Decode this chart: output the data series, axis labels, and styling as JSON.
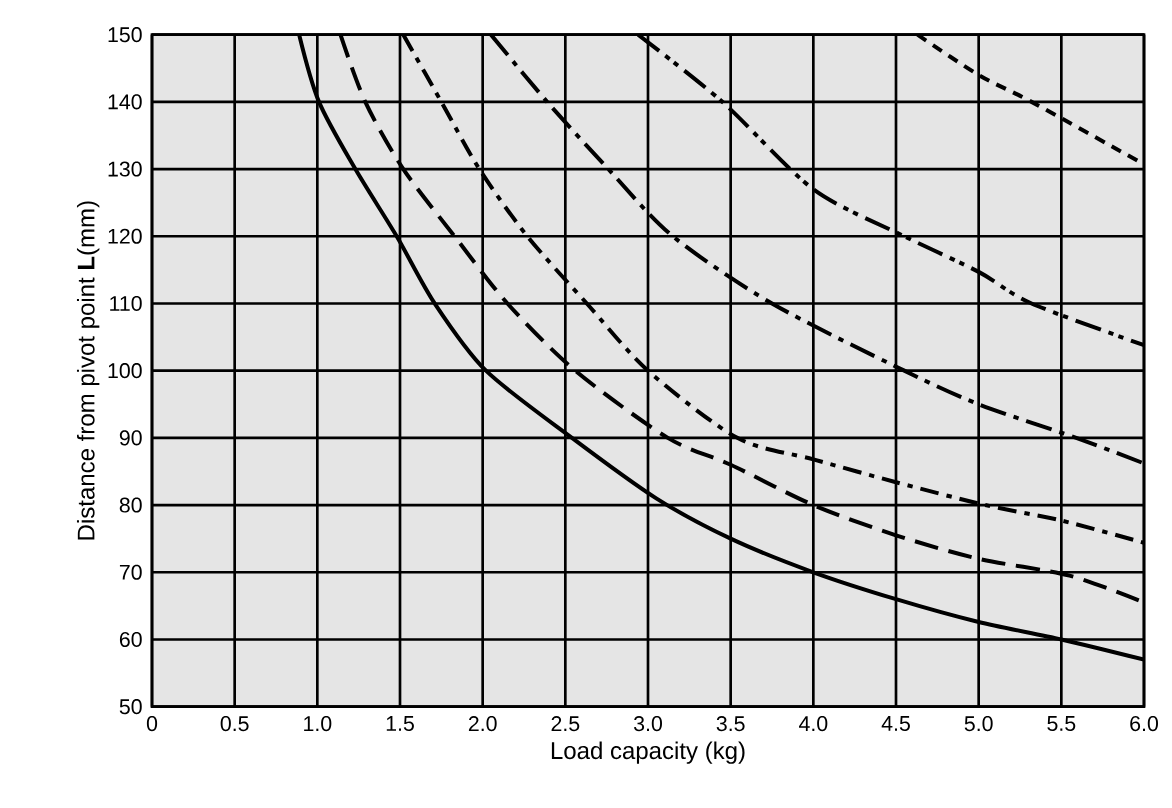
{
  "chart_data": {
    "type": "line",
    "xlabel": "Load capacity (kg)",
    "ylabel": "Distance from pivot point **L**(mm)",
    "xlim": [
      0,
      6
    ],
    "ylim": [
      50,
      150
    ],
    "xticks": [
      0,
      0.5,
      {
        "value": 1,
        "label": "1.0"
      },
      1.5,
      {
        "value": 2,
        "label": "2.0"
      },
      2.5,
      {
        "value": 3,
        "label": "3.0"
      },
      3.5,
      {
        "value": 4,
        "label": "4.0"
      },
      4.5,
      {
        "value": 5,
        "label": "5.0"
      },
      5.5,
      {
        "value": 6,
        "label": "6.0"
      }
    ],
    "yticks": [
      50,
      60,
      70,
      80,
      90,
      100,
      110,
      120,
      130,
      140,
      150
    ],
    "grid": true,
    "marker": "none",
    "series": [
      {
        "color": "#000000",
        "line_style": "solid",
        "x": [
          0.89,
          1.01,
          1.23,
          1.48,
          1.71,
          2.02,
          2.54,
          3.05,
          3.5,
          4.0,
          4.5,
          5.0,
          5.5,
          6.0
        ],
        "values": [
          150,
          140,
          130,
          120,
          110,
          100,
          90,
          81,
          75,
          70,
          66,
          62.6,
          60,
          57
        ]
      },
      {
        "color": "#000000",
        "line_style": "dashed",
        "x": [
          1.14,
          1.29,
          1.52,
          1.83,
          2.15,
          2.56,
          3.12,
          3.5,
          4.0,
          4.5,
          5.0,
          5.55,
          6.0
        ],
        "values": [
          150,
          140,
          130,
          120,
          110,
          100,
          90,
          86,
          80,
          75.5,
          72,
          69.5,
          65.5
        ]
      },
      {
        "color": "#000000",
        "line_style": "dashdot",
        "x": [
          1.52,
          1.75,
          1.98,
          2.27,
          2.63,
          3.0,
          3.54,
          4.0,
          4.5,
          5.04,
          5.5,
          6.0
        ],
        "values": [
          150,
          140,
          130,
          120,
          110,
          100,
          90,
          86.8,
          83.4,
          80,
          77.7,
          74.4
        ]
      },
      {
        "color": "#000000",
        "line_style": "longdashdot",
        "x": [
          2.05,
          2.39,
          2.76,
          3.15,
          3.75,
          4.55,
          5.0,
          5.59,
          6.0
        ],
        "values": [
          150,
          140,
          130,
          120,
          110,
          100,
          95,
          90,
          86.2
        ]
      },
      {
        "color": "#000000",
        "line_style": "dashdotdot",
        "x": [
          2.94,
          3.45,
          4.0,
          4.55,
          5.0,
          5.32,
          6.0
        ],
        "values": [
          150,
          140,
          127,
          120,
          114.7,
          110,
          103.8
        ]
      },
      {
        "color": "#000000",
        "line_style": "shortdashed",
        "x": [
          4.63,
          5.0,
          5.32,
          6.0
        ],
        "values": [
          150,
          144,
          140,
          130.7
        ]
      }
    ]
  }
}
